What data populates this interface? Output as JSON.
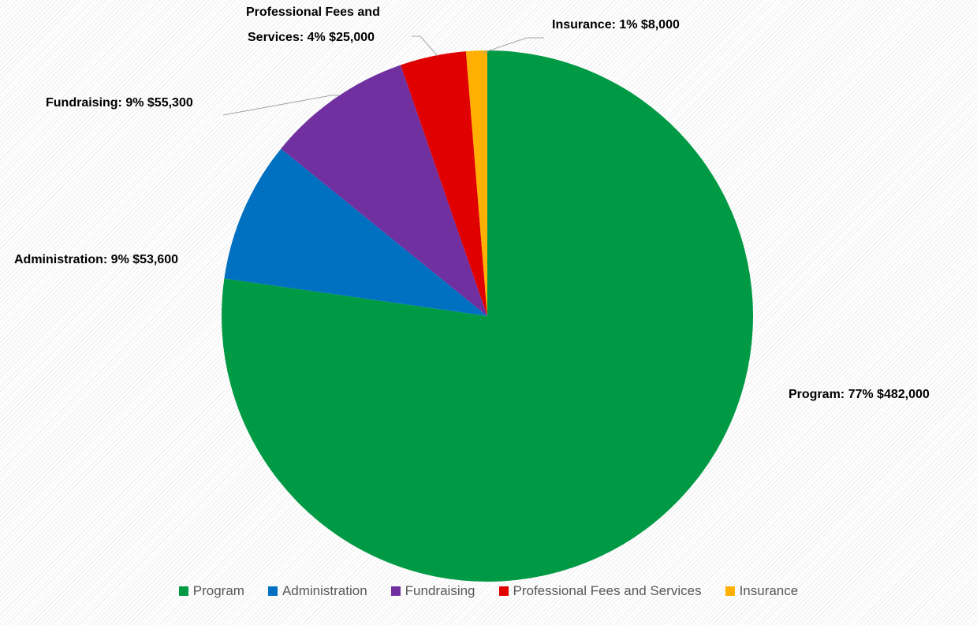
{
  "chart_data": {
    "type": "pie",
    "title": "",
    "slices": [
      {
        "name": "Program",
        "value": 482000,
        "percent": "77%",
        "value_label": "$482,000",
        "color": "#009A44"
      },
      {
        "name": "Administration",
        "value": 53600,
        "percent": "9%",
        "value_label": "$53,600",
        "color": "#0070C0"
      },
      {
        "name": "Fundraising",
        "value": 55300,
        "percent": "9%",
        "value_label": "$55,300",
        "color": "#7030A0"
      },
      {
        "name": "Professional Fees and Services",
        "value": 25000,
        "percent": "4%",
        "value_label": "$25,000",
        "color": "#E00000"
      },
      {
        "name": "Insurance",
        "value": 8000,
        "percent": "1%",
        "value_label": "$8,000",
        "color": "#FFB000"
      }
    ],
    "data_labels": {
      "program": "Program: 77% $482,000",
      "administration": "Administration: 9% $53,600",
      "fundraising": "Fundraising: 9% $55,300",
      "professional_line1": "Professional Fees and",
      "professional_line2": "Services: 4% $25,000",
      "insurance": "Insurance: 1% $8,000"
    },
    "legend_position": "bottom",
    "legend": [
      {
        "label": "Program",
        "color": "#009A44"
      },
      {
        "label": "Administration",
        "color": "#0070C0"
      },
      {
        "label": "Fundraising",
        "color": "#7030A0"
      },
      {
        "label": "Professional Fees and Services",
        "color": "#E00000"
      },
      {
        "label": "Insurance",
        "color": "#FFB000"
      }
    ]
  }
}
